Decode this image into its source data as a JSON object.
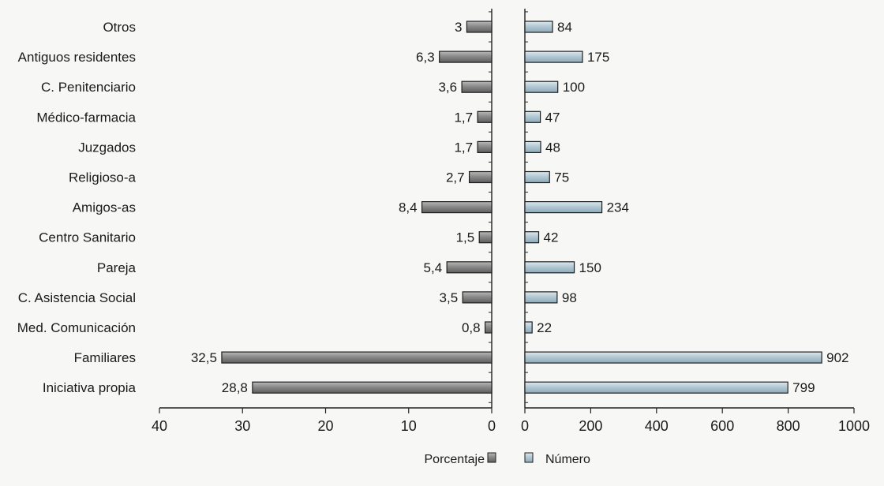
{
  "chart_data": {
    "type": "bar",
    "orientation": "horizontal",
    "categories": [
      "Otros",
      "Antiguos residentes",
      "C. Penitenciario",
      "Médico-farmacia",
      "Juzgados",
      "Religioso-a",
      "Amigos-as",
      "Centro Sanitario",
      "Pareja",
      "C. Asistencia Social",
      "Med. Comunicación",
      "Familiares",
      "Iniciativa propia"
    ],
    "series": [
      {
        "name": "Porcentaje",
        "color": "#7a7a7a",
        "values": [
          3,
          6.3,
          3.6,
          1.7,
          1.7,
          2.7,
          8.4,
          1.5,
          5.4,
          3.5,
          0.8,
          32.5,
          28.8
        ],
        "labels": [
          "3",
          "6,3",
          "3,6",
          "1,7",
          "1,7",
          "2,7",
          "8,4",
          "1,5",
          "5,4",
          "3,5",
          "0,8",
          "32,5",
          "28,8"
        ],
        "axis_range": [
          0,
          40
        ],
        "axis_ticks": [
          "40",
          "30",
          "20",
          "10",
          "0"
        ],
        "direction": "leftward"
      },
      {
        "name": "Número",
        "color": "#a7bfcc",
        "values": [
          84,
          175,
          100,
          47,
          48,
          75,
          234,
          42,
          150,
          98,
          22,
          902,
          799
        ],
        "labels": [
          "84",
          "175",
          "100",
          "47",
          "48",
          "75",
          "234",
          "42",
          "150",
          "98",
          "22",
          "902",
          "799"
        ],
        "axis_range": [
          0,
          1000
        ],
        "axis_ticks": [
          "0",
          "200",
          "400",
          "600",
          "800",
          "1000"
        ],
        "direction": "rightward"
      }
    ],
    "legend": {
      "position": "bottom",
      "items": [
        "Porcentaje",
        "Número"
      ]
    },
    "grid": false
  }
}
